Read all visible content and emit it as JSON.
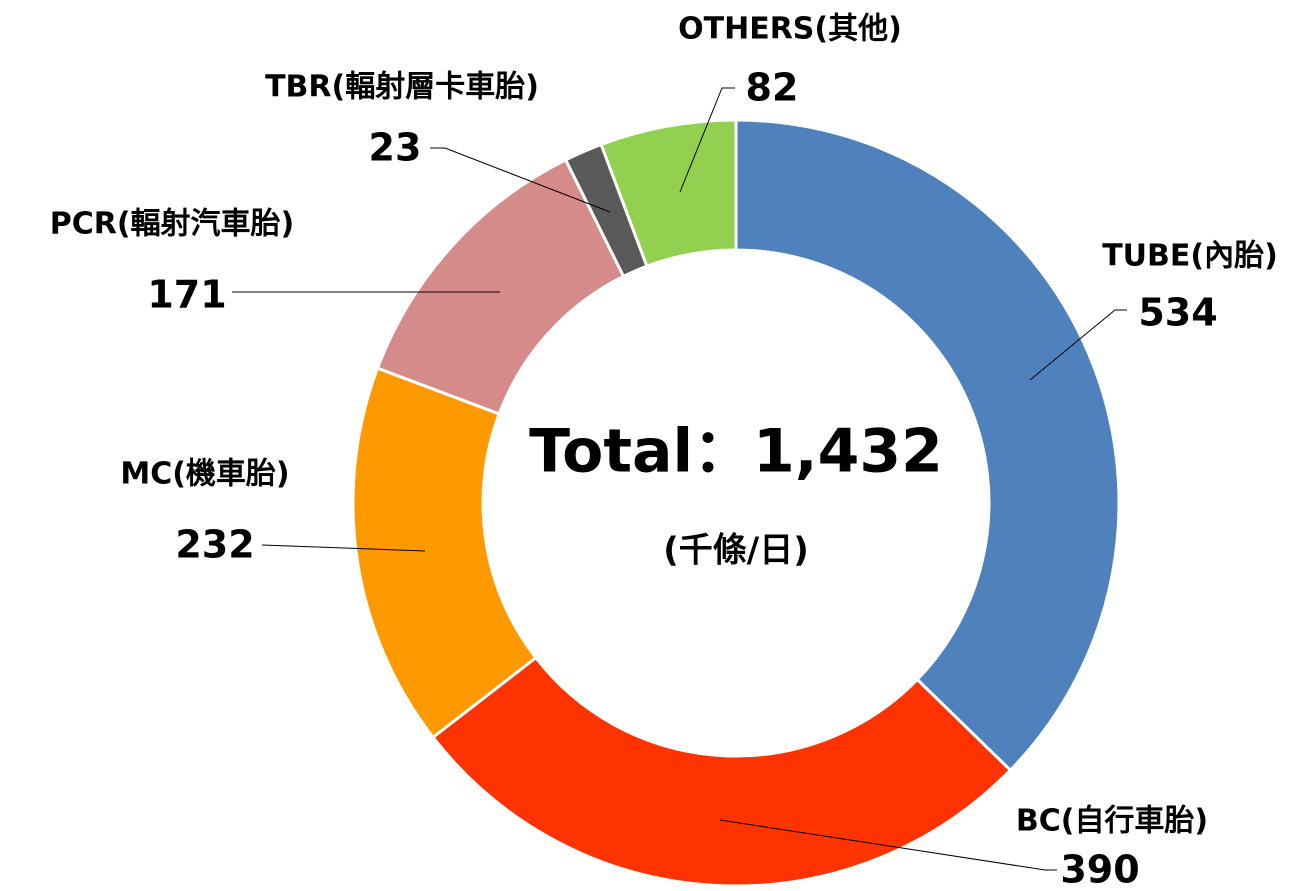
{
  "chart_data": {
    "type": "donut",
    "center_text": "Total：1,432",
    "center_subtext": "(千條/日)",
    "categories": [
      "TUBE(內胎)",
      "BC(自行車胎)",
      "MC(機車胎)",
      "PCR(輻射汽車胎)",
      "TBR(輻射層卡車胎)",
      "OTHERS(其他)"
    ],
    "values": [
      534,
      390,
      232,
      171,
      23,
      82
    ],
    "colors": [
      "#4f81bd",
      "#ff3300",
      "#ff9900",
      "#d48b8a",
      "#595959",
      "#92d050"
    ]
  }
}
